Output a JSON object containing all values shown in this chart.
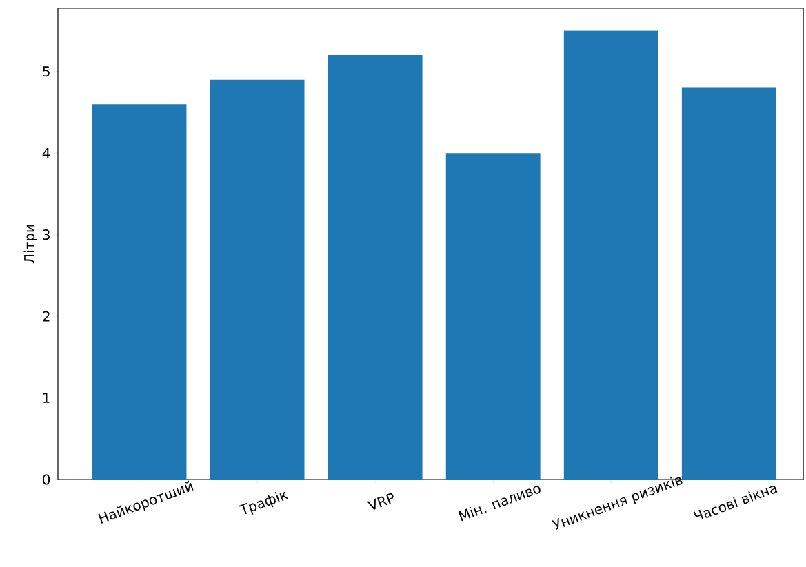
{
  "chart_data": {
    "type": "bar",
    "ylabel": "Літри",
    "categories": [
      "Найкоротший",
      "Трафік",
      "VRP",
      "Мін. паливо",
      "Уникнення ризиків",
      "Часові вікна"
    ],
    "values": [
      4.6,
      4.9,
      5.2,
      4.0,
      5.5,
      4.8
    ],
    "color": "#1f77b4",
    "ylim": [
      0,
      5.775
    ],
    "yticks": [
      0,
      1,
      2,
      3,
      4,
      5
    ],
    "grid": false
  }
}
